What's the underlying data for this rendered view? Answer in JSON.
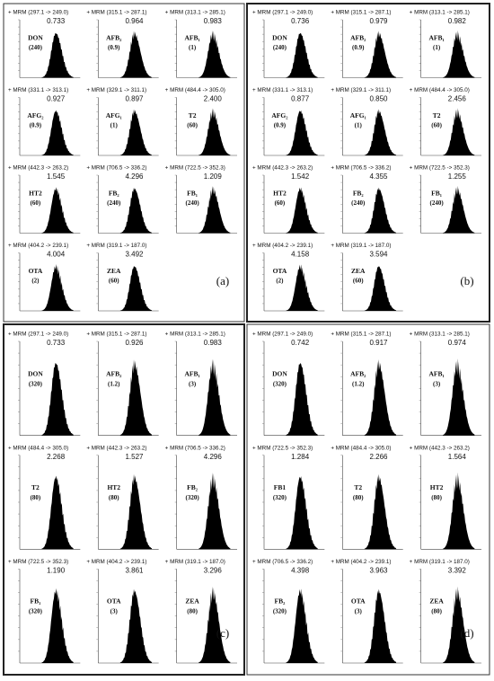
{
  "panels": [
    {
      "label": "(a)",
      "tiles": [
        {
          "mrm": "+ MRM (297.1 -> 249.0)",
          "rt": "0.733",
          "compound": "DON",
          "amount": "(240)"
        },
        {
          "mrm": "+ MRM (315.1 -> 287.1)",
          "rt": "0.964",
          "compound": "AFB₂",
          "amount": "(0.9)"
        },
        {
          "mrm": "+ MRM (313.1 -> 285.1)",
          "rt": "0.983",
          "compound": "AFB₁",
          "amount": "(1)"
        },
        {
          "mrm": "+ MRM (331.1 -> 313.1)",
          "rt": "0.927",
          "compound": "AFG₂",
          "amount": "(0.9)"
        },
        {
          "mrm": "+ MRM (329.1 -> 311.1)",
          "rt": "0.897",
          "compound": "AFG₁",
          "amount": "(1)"
        },
        {
          "mrm": "+ MRM (484.4 -> 305.0)",
          "rt": "2.400",
          "compound": "T2",
          "amount": "(60)"
        },
        {
          "mrm": "+ MRM (442.3 -> 263.2)",
          "rt": "1.545",
          "compound": "HT2",
          "amount": "(60)"
        },
        {
          "mrm": "+ MRM (706.5 -> 336.2)",
          "rt": "4.296",
          "compound": "FB₂",
          "amount": "(240)"
        },
        {
          "mrm": "+ MRM (722.5 -> 352.3)",
          "rt": "1.209",
          "compound": "FB₁",
          "amount": "(240)"
        },
        {
          "mrm": "+ MRM (404.2 -> 239.1)",
          "rt": "4.004",
          "compound": "OTA",
          "amount": "(2)"
        },
        {
          "mrm": "+ MRM (319.1 -> 187.0)",
          "rt": "3.492",
          "compound": "ZEA",
          "amount": "(60)"
        }
      ]
    },
    {
      "label": "(b)",
      "tiles": [
        {
          "mrm": "+ MRM (297.1 -> 249.0)",
          "rt": "0.736",
          "compound": "DON",
          "amount": "(240)"
        },
        {
          "mrm": "+ MRM (315.1 -> 287.1)",
          "rt": "0.979",
          "compound": "AFB₂",
          "amount": "(0.9)"
        },
        {
          "mrm": "+ MRM (313.1 -> 285.1)",
          "rt": "0.982",
          "compound": "AFB₁",
          "amount": "(1)"
        },
        {
          "mrm": "+ MRM (331.1 -> 313.1)",
          "rt": "0.877",
          "compound": "AFG₂",
          "amount": "(0.9)"
        },
        {
          "mrm": "+ MRM (329.1 -> 311.1)",
          "rt": "0.850",
          "compound": "AFG₁",
          "amount": "(1)"
        },
        {
          "mrm": "+ MRM (484.4 -> 305.0)",
          "rt": "2.456",
          "compound": "T2",
          "amount": "(60)"
        },
        {
          "mrm": "+ MRM (442.3 -> 263.2)",
          "rt": "1.542",
          "compound": "HT2",
          "amount": "(60)"
        },
        {
          "mrm": "+ MRM (706.5 -> 336.2)",
          "rt": "4.355",
          "compound": "FB₂",
          "amount": "(240)"
        },
        {
          "mrm": "+ MRM (722.5 -> 352.3)",
          "rt": "1.255",
          "compound": "FB₁",
          "amount": "(240)"
        },
        {
          "mrm": "+ MRM (404.2 -> 239.1)",
          "rt": "4.158",
          "compound": "OTA",
          "amount": "(2)"
        },
        {
          "mrm": "+ MRM (319.1 -> 187.0)",
          "rt": "3.594",
          "compound": "ZEA",
          "amount": "(60)"
        }
      ]
    },
    {
      "label": "(c)",
      "tiles": [
        {
          "mrm": "+ MRM (297.1 -> 249.0)",
          "rt": "0.733",
          "compound": "DON",
          "amount": "(320)"
        },
        {
          "mrm": "+ MRM (315.1 -> 287.1)",
          "rt": "0.926",
          "compound": "AFB₂",
          "amount": "(1.2)"
        },
        {
          "mrm": "+ MRM (313.1 -> 285.1)",
          "rt": "0.983",
          "compound": "AFB₁",
          "amount": "(3)"
        },
        {
          "mrm": "+ MRM (484.4 -> 305.0)",
          "rt": "2.268",
          "compound": "T2",
          "amount": "(80)"
        },
        {
          "mrm": "+ MRM (442.3 -> 263.2)",
          "rt": "1.527",
          "compound": "HT2",
          "amount": "(80)"
        },
        {
          "mrm": "+ MRM (706.5 -> 336.2)",
          "rt": "4.296",
          "compound": "FB₂",
          "amount": "(320)"
        },
        {
          "mrm": "+ MRM (722.5 -> 352.3)",
          "rt": "1.190",
          "compound": "FB₁",
          "amount": "(320)"
        },
        {
          "mrm": "+ MRM (404.2 -> 239.1)",
          "rt": "3.861",
          "compound": "OTA",
          "amount": "(3)"
        },
        {
          "mrm": "+ MRM (319.1 -> 187.0)",
          "rt": "3.296",
          "compound": "ZEA",
          "amount": "(80)"
        }
      ]
    },
    {
      "label": "(d)",
      "tiles": [
        {
          "mrm": "+ MRM (297.1 -> 249.0)",
          "rt": "0.742",
          "compound": "DON",
          "amount": "(320)"
        },
        {
          "mrm": "+ MRM (315.1 -> 287.1)",
          "rt": "0.917",
          "compound": "AFB₂",
          "amount": "(1.2)"
        },
        {
          "mrm": "+ MRM (313.1 -> 285.1)",
          "rt": "0.974",
          "compound": "AFB₁",
          "amount": "(3)"
        },
        {
          "mrm": "+ MRM (722.5 -> 352.3)",
          "rt": "1.284",
          "compound": "FB1",
          "amount": "(320)"
        },
        {
          "mrm": "+ MRM (484.4 -> 305.0)",
          "rt": "2.266",
          "compound": "T2",
          "amount": "(80)"
        },
        {
          "mrm": "+ MRM (442.3 -> 263.2)",
          "rt": "1.564",
          "compound": "HT2",
          "amount": "(80)"
        },
        {
          "mrm": "+ MRM (706.5 -> 336.2)",
          "rt": "4.398",
          "compound": "FB₂",
          "amount": "(320)"
        },
        {
          "mrm": "+ MRM (404.2 -> 239.1)",
          "rt": "3.963",
          "compound": "OTA",
          "amount": "(3)"
        },
        {
          "mrm": "+ MRM (319.1 -> 187.0)",
          "rt": "3.392",
          "compound": "ZEA",
          "amount": "(80)"
        }
      ]
    }
  ]
}
